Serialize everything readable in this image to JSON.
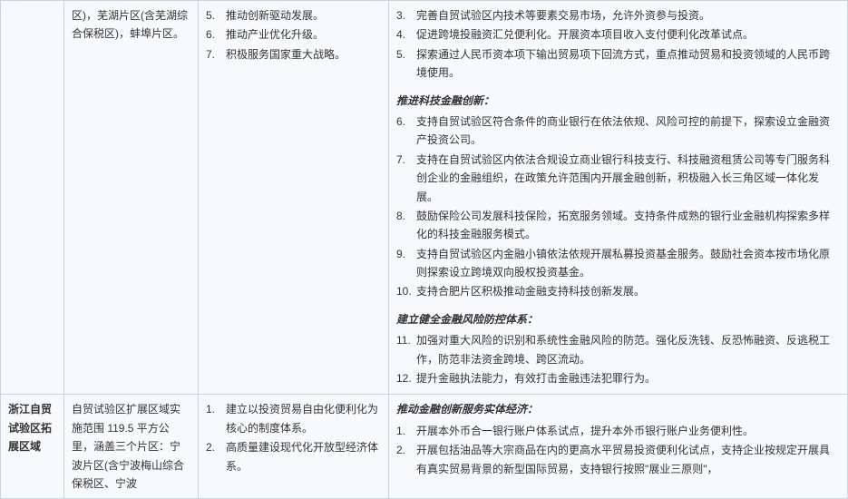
{
  "rows": [
    {
      "name": "",
      "scope": "区)，芜湖片区(含芜湖综合保税区)，蚌埠片区。",
      "position_start": 5,
      "position": [
        "推动创新驱动发展。",
        "推动产业优化升级。",
        "积极服务国家重大战略。"
      ],
      "finance_sections": [
        {
          "heading": "",
          "start": 3,
          "items": [
            "完善自贸试验区内技术等要素交易市场，允许外资参与投资。",
            "促进跨境投融资汇兑便利化。开展资本项目收入支付便利化改革试点。",
            "探索通过人民币资本项下输出贸易项下回流方式，重点推动贸易和投资领域的人民币跨境使用。"
          ]
        },
        {
          "heading": "推进科技金融创新：",
          "start": 6,
          "items": [
            "支持自贸试验区符合条件的商业银行在依法依规、风险可控的前提下，探索设立金融资产投资公司。",
            "支持在自贸试验区内依法合规设立商业银行科技支行、科技融资租赁公司等专门服务科创企业的金融组织，在政策允许范围内开展金融创新，积极融入长三角区域一体化发展。",
            "鼓励保险公司发展科技保险，拓宽服务领域。支持条件成熟的银行业金融机构探索多样化的科技金融服务模式。",
            "支持自贸试验区内金融小镇依法依规开展私募投资基金服务。鼓励社会资本按市场化原则探索设立跨境双向股权投资基金。",
            "支持合肥片区积极推动金融支持科技创新发展。"
          ]
        },
        {
          "heading": "建立健全金融风险防控体系：",
          "start": 11,
          "items": [
            "加强对重大风险的识别和系统性金融风险的防范。强化反洗钱、反恐怖融资、反逃税工作，防范非法资金跨境、跨区流动。",
            "提升金融执法能力，有效打击金融违法犯罪行为。"
          ]
        }
      ]
    },
    {
      "name": "浙江自贸试验区拓展区域",
      "scope": "自贸试验区扩展区域实施范围 119.5 平方公里，涵盖三个片区：宁波片区(含宁波梅山综合保税区、宁波",
      "position_start": 1,
      "position": [
        "建立以投资贸易自由化便利化为核心的制度体系。",
        "高质量建设现代化开放型经济体系。"
      ],
      "finance_sections": [
        {
          "heading": "推动金融创新服务实体经济：",
          "start": 1,
          "items": [
            "开展本外币合一银行账户体系试点，提升本外币银行账户业务便利性。",
            "开展包括油品等大宗商品在内的更高水平贸易投资便利化试点，支持企业按规定开展具有真实贸易背景的新型国际贸易，支持银行按照\"展业三原则\"，"
          ]
        }
      ]
    }
  ]
}
